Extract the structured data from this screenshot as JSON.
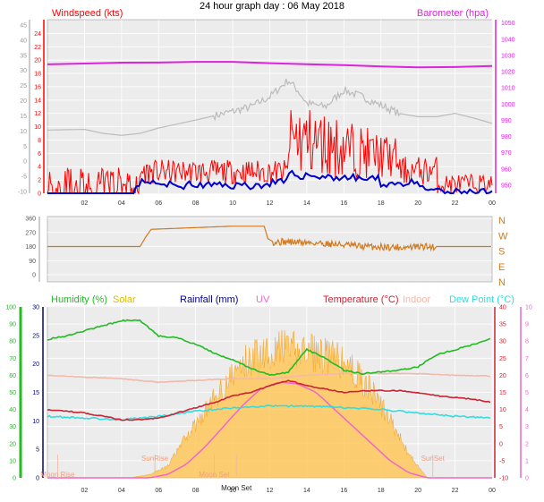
{
  "header": {
    "title": "24 hour graph day : 06 May 2018"
  },
  "colors": {
    "windspeed": "#ff0000",
    "avg_wind": "#0000cc",
    "gust_grey": "#bbbbbb",
    "barometer": "#dd22dd",
    "direction": "#d07a20",
    "humidity": "#22bb22",
    "solar": "#ddbb00",
    "rainfall": "#000088",
    "uv": "#ee66cc",
    "temperature": "#cc2233",
    "indoor": "#f3b8a8",
    "dewpoint": "#33dddd",
    "plot_bg": "#ececec"
  },
  "chart_data": [
    {
      "type": "line",
      "panel": "wind",
      "labels": {
        "left": "Windspeed (kts)",
        "right": "Barometer (hpa)"
      },
      "x_ticks": [
        "02",
        "04",
        "06",
        "08",
        "10",
        "12",
        "14",
        "16",
        "18",
        "20",
        "22",
        "00"
      ],
      "left_axis_outer": {
        "ticks": [
          "-10",
          "-5",
          "0",
          "5",
          "10",
          "15",
          "20",
          "25",
          "30",
          "35",
          "40",
          "45"
        ]
      },
      "left_axis_inner": {
        "ticks": [
          "0",
          "2",
          "4",
          "6",
          "8",
          "10",
          "12",
          "14",
          "16",
          "18",
          "20",
          "22",
          "24"
        ],
        "ylim": [
          0,
          25
        ]
      },
      "right_axis": {
        "ticks": [
          "950",
          "960",
          "970",
          "980",
          "990",
          "1000",
          "1010",
          "1020",
          "1030",
          "1040",
          "1050"
        ],
        "ylim": [
          945,
          1052
        ]
      },
      "series": [
        {
          "name": "Barometer",
          "axis": "right",
          "x": [
            0,
            2,
            4,
            6,
            8,
            10,
            12,
            14,
            16,
            18,
            20,
            22,
            24
          ],
          "values": [
            1024.5,
            1025,
            1025.5,
            1025.6,
            1026,
            1026,
            1025.2,
            1024.6,
            1024,
            1023.2,
            1022.6,
            1022.8,
            1023.5
          ]
        },
        {
          "name": "Gust",
          "axis": "left",
          "x": [
            0,
            2,
            3,
            4,
            5,
            6,
            8,
            10,
            11,
            12,
            13,
            13.5,
            14,
            15,
            16,
            17,
            18,
            19,
            20,
            21,
            22,
            23,
            24
          ],
          "values": [
            9.5,
            9.6,
            9,
            8.7,
            9,
            9.8,
            11,
            12.3,
            13,
            14.5,
            17,
            15.5,
            13.5,
            13,
            15.5,
            14.5,
            13.2,
            12,
            11.5,
            11.5,
            12,
            11.3,
            10.5
          ]
        }
      ]
    },
    {
      "type": "line",
      "panel": "direction",
      "y_ticks": [
        "360",
        "270",
        "180",
        "90",
        "0"
      ],
      "compass": [
        "N",
        "W",
        "S",
        "E",
        "N"
      ],
      "series": [
        {
          "name": "Wind direction",
          "x": [
            0,
            5,
            5.3,
            5.6,
            10,
            11.7,
            11.9,
            12.2,
            13,
            15,
            17,
            19,
            21,
            24
          ],
          "values": [
            180,
            180,
            240,
            290,
            310,
            310,
            230,
            210,
            210,
            200,
            180,
            175,
            180,
            180
          ]
        }
      ]
    },
    {
      "type": "line",
      "panel": "temp",
      "labels": {
        "humidity": "Humidity (%)",
        "solar": "Solar",
        "rainfall": "Rainfall (mm)",
        "uv": "UV",
        "temperature": "Temperature (°C)",
        "indoor": "Indoor",
        "dewpoint": "Dew Point (°C)"
      },
      "x_ticks": [
        "02",
        "04",
        "06",
        "08",
        "10",
        "12",
        "14",
        "16",
        "18",
        "20",
        "22",
        "00"
      ],
      "annotations": [
        "Moon Rise",
        "SunRise",
        "Moon Set",
        "SunSet",
        "Moon Set"
      ],
      "axis_humidity": {
        "ticks": [
          "0",
          "10",
          "20",
          "30",
          "40",
          "50",
          "60",
          "70",
          "80",
          "90",
          "100"
        ]
      },
      "axis_rain": {
        "ticks": [
          "0",
          "5",
          "10",
          "15",
          "20",
          "25",
          "30"
        ]
      },
      "axis_temp": {
        "ticks": [
          "-10",
          "-5",
          "0",
          "5",
          "10",
          "15",
          "20",
          "25",
          "30",
          "35",
          "40"
        ],
        "ylim": [
          -10,
          40
        ]
      },
      "axis_uv": {
        "ticks": [
          "0",
          "1",
          "2",
          "3",
          "4",
          "5",
          "6",
          "7",
          "8",
          "9",
          "10"
        ]
      },
      "series": [
        {
          "name": "Humidity",
          "unit": "%",
          "x": [
            0,
            1,
            2,
            3,
            4,
            5,
            6,
            7,
            8,
            9,
            10,
            11,
            12,
            13,
            14,
            15,
            16,
            17,
            18,
            19,
            20,
            21,
            22,
            23,
            24
          ],
          "values": [
            81,
            83,
            86,
            89,
            92,
            92,
            83,
            82,
            78,
            73,
            69,
            64,
            60,
            62,
            75,
            70,
            63,
            61,
            62,
            63,
            65,
            72,
            75,
            78,
            82
          ]
        },
        {
          "name": "Temperature",
          "unit": "°C",
          "x": [
            0,
            1,
            2,
            3,
            4,
            5,
            6,
            7,
            8,
            9,
            10,
            11,
            12,
            13,
            14,
            15,
            16,
            17,
            18,
            19,
            20,
            21,
            22,
            23,
            24
          ],
          "values": [
            10,
            9.5,
            9,
            8,
            7,
            7,
            7.5,
            9,
            10.5,
            12,
            14,
            15,
            17,
            18.5,
            17,
            16,
            15,
            15.5,
            15.5,
            15.5,
            15,
            14,
            13.5,
            13,
            12
          ]
        },
        {
          "name": "Indoor",
          "unit": "°C",
          "x": [
            0,
            2,
            4,
            6,
            8,
            10,
            12,
            14,
            16,
            18,
            20,
            22,
            24
          ],
          "values": [
            20,
            19.5,
            19,
            18,
            18.5,
            19,
            19,
            20,
            20.5,
            20.5,
            20.5,
            20,
            19.8
          ]
        },
        {
          "name": "Dew Point",
          "unit": "°C",
          "x": [
            0,
            2,
            4,
            6,
            8,
            10,
            12,
            14,
            16,
            18,
            20,
            22,
            24
          ],
          "values": [
            8,
            7.5,
            7,
            8,
            9.5,
            10.5,
            11,
            11,
            10.5,
            10,
            9,
            8,
            7.5
          ]
        },
        {
          "name": "Solar",
          "x": [
            0,
            4.5,
            5.5,
            6.5,
            7.5,
            8.5,
            9.5,
            10.5,
            11.5,
            12.5,
            13.5,
            14.5,
            15.5,
            16.5,
            17.5,
            18.5,
            19.5,
            20.5,
            24
          ],
          "values": [
            0,
            0,
            2,
            7,
            25,
            40,
            55,
            68,
            76,
            78,
            77,
            75,
            72,
            65,
            52,
            35,
            14,
            0,
            0
          ]
        },
        {
          "name": "UV",
          "x": [
            0,
            5.5,
            6.5,
            7.5,
            8.5,
            9.5,
            10.5,
            11.5,
            12.5,
            13.5,
            14.5,
            15.5,
            16.5,
            17.5,
            18.5,
            19.5,
            20.5,
            24
          ],
          "values": [
            0,
            0,
            0.2,
            0.8,
            1.8,
            3,
            4.2,
            5.2,
            5.6,
            5.5,
            5,
            4,
            3,
            2,
            1,
            0.3,
            0,
            0
          ]
        }
      ]
    }
  ]
}
